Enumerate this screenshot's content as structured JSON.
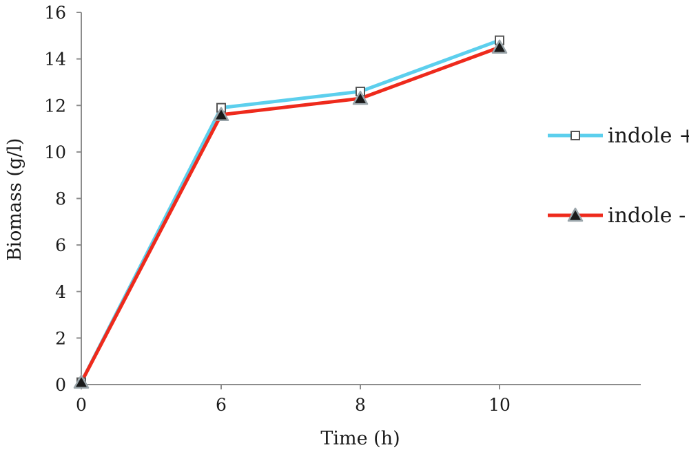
{
  "chart_data": {
    "type": "line",
    "title": "",
    "xlabel": "Time (h)",
    "ylabel": "Biomass (g/l)",
    "categories": [
      "0",
      "6",
      "8",
      "10"
    ],
    "ylim": [
      0,
      16
    ],
    "yticks": [
      "0",
      "2",
      "4",
      "6",
      "8",
      "10",
      "12",
      "14",
      "16"
    ],
    "grid": false,
    "legend_position": "right",
    "series": [
      {
        "name": "indole +",
        "values": [
          0.1,
          11.9,
          12.6,
          14.8
        ],
        "color": "#5ccfed",
        "marker": "open-square"
      },
      {
        "name": "indole -",
        "values": [
          0.1,
          11.6,
          12.3,
          14.5
        ],
        "color": "#ee2a1c",
        "marker": "filled-triangle"
      }
    ]
  }
}
